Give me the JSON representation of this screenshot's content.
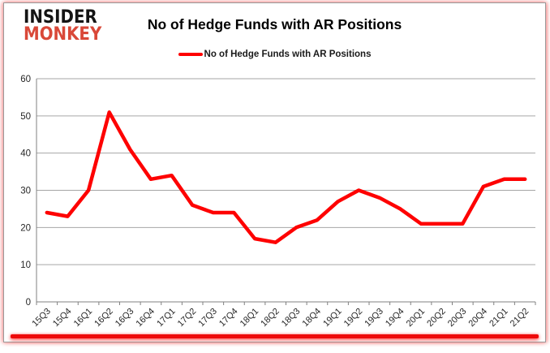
{
  "logo": {
    "line1": "INSIDER",
    "line2": "MONKEY"
  },
  "header": {
    "title": "No of Hedge Funds with AR Positions"
  },
  "legend": {
    "label": "No of Hedge Funds with AR Positions"
  },
  "colors": {
    "line": "#fe0000",
    "logo_top": "#141414",
    "logo_accent": "#d94838",
    "grid": "#a6a6a6",
    "axis": "#808080",
    "bottom_bar": "#ee0b0b"
  },
  "chart_data": {
    "type": "line",
    "title": "No of Hedge Funds with AR Positions",
    "categories": [
      "15Q3",
      "15Q4",
      "16Q1",
      "16Q2",
      "16Q3",
      "16Q4",
      "17Q1",
      "17Q2",
      "17Q3",
      "17Q4",
      "18Q1",
      "18Q2",
      "18Q3",
      "18Q4",
      "19Q1",
      "19Q2",
      "19Q3",
      "19Q4",
      "20Q1",
      "20Q2",
      "20Q3",
      "20Q4",
      "21Q1",
      "21Q2"
    ],
    "series": [
      {
        "name": "No of Hedge Funds with AR Positions",
        "values": [
          24,
          23,
          30,
          51,
          41,
          33,
          34,
          26,
          24,
          24,
          17,
          16,
          20,
          22,
          27,
          30,
          28,
          25,
          21,
          21,
          21,
          31,
          33,
          33
        ]
      }
    ],
    "xlabel": "",
    "ylabel": "",
    "ylim": [
      0,
      60
    ],
    "ytick_interval": 10,
    "grid": "horizontal",
    "legend_position": "top-center",
    "line_color": "#fe0000",
    "x_label_rotation": 45
  }
}
